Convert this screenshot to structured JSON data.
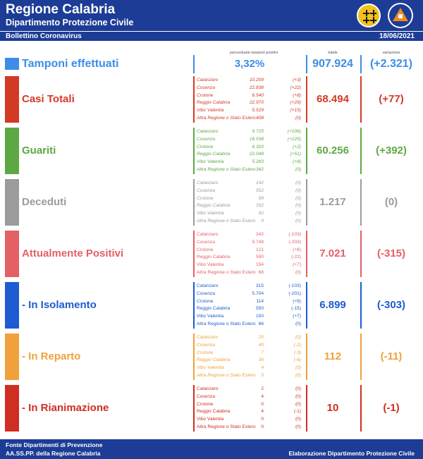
{
  "header": {
    "title": "Regione Calabria",
    "subtitle": "Dipartimento Protezione Civile",
    "bulletin": "Bollettino Coronavirus",
    "date": "18/06/2021"
  },
  "columns": {
    "percent_header": "percentuale tamponi positivi",
    "total_header": "totale",
    "delta_header": "variazione"
  },
  "tamponi": {
    "label": "Tamponi effettuati",
    "percent": "3,32%",
    "total": "907.924",
    "delta": "(+2.321)",
    "color": "#3d8de8"
  },
  "categories": [
    {
      "key": "casi",
      "label": "Casi Totali",
      "total": "68.494",
      "delta": "(+77)",
      "color": "#d33a26",
      "italic": true,
      "rows": [
        {
          "name": "Catanzaro",
          "value": "10.209",
          "delta": "(+3)"
        },
        {
          "name": "Cosenza",
          "value": "22.838",
          "delta": "(+22)"
        },
        {
          "name": "Crotone",
          "value": "6.540",
          "delta": "(+8)"
        },
        {
          "name": "Reggio Calabria",
          "value": "22.970",
          "delta": "(+29)"
        },
        {
          "name": "Vibo Valentia",
          "value": "5.529",
          "delta": "(+15)"
        },
        {
          "name": "Altra Regione o Stato Estero",
          "value": "408",
          "delta": "(0)"
        }
      ]
    },
    {
      "key": "guariti",
      "label": "Guariti",
      "total": "60.256",
      "delta": "(+392)",
      "color": "#5ea844",
      "italic": true,
      "rows": [
        {
          "name": "Catanzaro",
          "value": "9.725",
          "delta": "(+106)"
        },
        {
          "name": "Cosenza",
          "value": "16.538",
          "delta": "(+225)"
        },
        {
          "name": "Crotone",
          "value": "6.320",
          "delta": "(+2)"
        },
        {
          "name": "Reggio Calabria",
          "value": "22.048",
          "delta": "(+51)"
        },
        {
          "name": "Vibo Valentia",
          "value": "5.283",
          "delta": "(+8)"
        },
        {
          "name": "Altra Regione o Stato Estero",
          "value": "342",
          "delta": "(0)"
        }
      ]
    },
    {
      "key": "deceduti",
      "label": "Deceduti",
      "total": "1.217",
      "delta": "(0)",
      "color": "#9b9b9b",
      "italic": true,
      "rows": [
        {
          "name": "Catanzaro",
          "value": "142",
          "delta": "(0)"
        },
        {
          "name": "Cosenza",
          "value": "552",
          "delta": "(0)"
        },
        {
          "name": "Crotone",
          "value": "99",
          "delta": "(0)"
        },
        {
          "name": "Reggio Calabria",
          "value": "332",
          "delta": "(0)"
        },
        {
          "name": "Vibo Valentia",
          "value": "92",
          "delta": "(0)"
        },
        {
          "name": "Altra Regione o Stato Estero",
          "value": "0",
          "delta": "(0)"
        }
      ]
    },
    {
      "key": "positivi",
      "label": "Attualmente Positivi",
      "total": "7.021",
      "delta": "(-315)",
      "color": "#e36066",
      "italic": false,
      "rows": [
        {
          "name": "Catanzaro",
          "value": "342",
          "delta": "(-103)"
        },
        {
          "name": "Cosenza",
          "value": "5.748",
          "delta": "(-203)"
        },
        {
          "name": "Crotone",
          "value": "121",
          "delta": "(+6)"
        },
        {
          "name": "Reggio Calabria",
          "value": "590",
          "delta": "(-22)"
        },
        {
          "name": "Vibo Valentia",
          "value": "154",
          "delta": "(+7)"
        },
        {
          "name": "Altra Regione o Stato Estero",
          "value": "66",
          "delta": "(0)"
        }
      ]
    },
    {
      "key": "isolamento",
      "label": " - In Isolamento",
      "total": "6.899",
      "delta": "(-303)",
      "color": "#1f5bd1",
      "italic": false,
      "rows": [
        {
          "name": "Catanzaro",
          "value": "315",
          "delta": "(-103)"
        },
        {
          "name": "Cosenza",
          "value": "5.704",
          "delta": "(-201)"
        },
        {
          "name": "Crotone",
          "value": "114",
          "delta": "(+9)"
        },
        {
          "name": "Reggio Calabria",
          "value": "550",
          "delta": "(-15)"
        },
        {
          "name": "Vibo Valentia",
          "value": "150",
          "delta": "(+7)"
        },
        {
          "name": "Altra Regione o Stato Estero",
          "value": "66",
          "delta": "(0)"
        }
      ]
    },
    {
      "key": "reparto",
      "label": " - In Reparto",
      "total": "112",
      "delta": "(-11)",
      "color": "#f0a13b",
      "italic": true,
      "rows": [
        {
          "name": "Catanzaro",
          "value": "25",
          "delta": "(0)"
        },
        {
          "name": "Cosenza",
          "value": "40",
          "delta": "(-2)"
        },
        {
          "name": "Crotone",
          "value": "7",
          "delta": "(-3)"
        },
        {
          "name": "Reggio Calabria",
          "value": "36",
          "delta": "(-6)"
        },
        {
          "name": "Vibo Valentia",
          "value": "4",
          "delta": "(0)"
        },
        {
          "name": "Altra Regione o Stato Estero",
          "value": "0",
          "delta": "(0)"
        }
      ]
    },
    {
      "key": "rianimazione",
      "label": " - In Rianimazione",
      "total": "10",
      "delta": "(-1)",
      "color": "#cf2e22",
      "italic": false,
      "rows": [
        {
          "name": "Catanzaro",
          "value": "2",
          "delta": "(0)"
        },
        {
          "name": "Cosenza",
          "value": "4",
          "delta": "(0)"
        },
        {
          "name": "Crotone",
          "value": "0",
          "delta": "(0)"
        },
        {
          "name": "Reggio Calabria",
          "value": "4",
          "delta": "(-1)"
        },
        {
          "name": "Vibo Valentia",
          "value": "0",
          "delta": "(0)"
        },
        {
          "name": "Altra Regione o Stato Estero",
          "value": "0",
          "delta": "(0)"
        }
      ]
    }
  ],
  "footer": {
    "source_line1": "Fonte Dipartimenti di Prevenzione",
    "source_line2": "AA.SS.PP.  della Regione Calabria",
    "credit": "Elaborazione Dipartimento Protezione Civile"
  }
}
